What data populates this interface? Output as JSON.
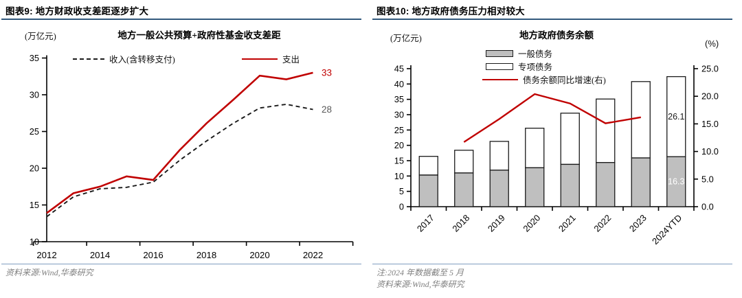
{
  "figure9": {
    "header": "图表9: 地方财政收支差距逐步扩大",
    "unit_label": "(万亿元)",
    "source": "资料来源:Wind,华泰研究"
  },
  "figure10": {
    "header": "图表10: 地方政府债务压力相对较大",
    "unit_label_left": "(万亿元)",
    "unit_label_right": "(%)",
    "note": "注:2024 年数据截至 5 月",
    "source": "资料来源:Wind,华泰研究"
  },
  "colors": {
    "accent_red": "#c00000",
    "bar_gray": "#bfbfbf",
    "bar_white": "#ffffff",
    "header_rule": "#31587c",
    "footer_rule": "#7f9cc0",
    "income_label_gray": "#595959"
  },
  "chart_data": [
    {
      "type": "line",
      "title": "地方一般公共预算+政府性基金收支差距",
      "unit": "万亿元",
      "x": [
        2012,
        2013,
        2014,
        2015,
        2016,
        2017,
        2018,
        2019,
        2020,
        2021,
        2022
      ],
      "series": [
        {
          "name": "收入(含转移支付)",
          "dash": true,
          "color": "#1a1a1a",
          "values": [
            13.4,
            16.1,
            17.2,
            17.4,
            18.1,
            21.1,
            23.7,
            26.1,
            28.2,
            28.7,
            28.0
          ],
          "end_label": "28",
          "label_color": "#595959"
        },
        {
          "name": "支出",
          "dash": false,
          "color": "#c00000",
          "values": [
            13.9,
            16.6,
            17.5,
            18.9,
            18.4,
            22.5,
            26.1,
            29.3,
            32.6,
            32.1,
            33.0
          ],
          "end_label": "33",
          "label_color": "#c00000"
        }
      ],
      "ylim": [
        10,
        35
      ],
      "yticks": [
        10,
        15,
        20,
        25,
        30,
        35
      ],
      "xticks": [
        2012,
        2014,
        2016,
        2018,
        2020,
        2022
      ],
      "grid": false,
      "legend_position": "top"
    },
    {
      "type": "bar",
      "subtype": "stacked-bar-with-line",
      "title": "地方政府债务余额",
      "unit_left": "万亿元",
      "unit_right": "%",
      "categories": [
        "2017",
        "2018",
        "2019",
        "2020",
        "2021",
        "2022",
        "2023",
        "2024YTD"
      ],
      "series": [
        {
          "name": "一般债务",
          "type": "bar",
          "color": "#bfbfbf",
          "values": [
            10.3,
            11.0,
            11.9,
            12.7,
            13.8,
            14.4,
            15.9,
            16.3
          ]
        },
        {
          "name": "专项债务",
          "type": "bar",
          "color": "#ffffff",
          "values": [
            6.1,
            7.4,
            9.4,
            12.9,
            16.7,
            20.7,
            24.9,
            26.1
          ]
        },
        {
          "name": "债务余额同比增速(右)",
          "type": "line",
          "axis": "right",
          "color": "#c00000",
          "values": [
            null,
            11.7,
            15.9,
            20.4,
            18.7,
            15.1,
            16.2,
            null
          ]
        }
      ],
      "bar_labels": {
        "special": "26.1",
        "general": "16.3"
      },
      "ylim_left": [
        0,
        45
      ],
      "yticks_left": [
        0,
        5,
        10,
        15,
        20,
        25,
        30,
        35,
        40,
        45
      ],
      "ylim_right": [
        0,
        25
      ],
      "yticks_right": [
        "0.0",
        "5.0",
        "10.0",
        "15.0",
        "20.0",
        "25.0"
      ],
      "grid": false,
      "legend_position": "top"
    }
  ]
}
